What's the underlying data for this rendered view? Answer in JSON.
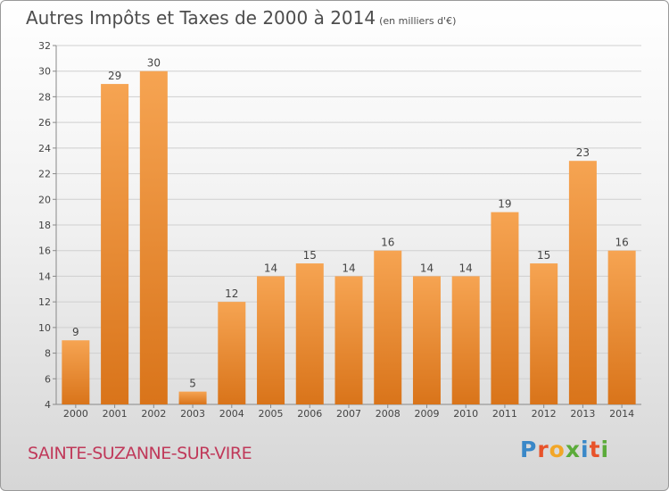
{
  "header": {
    "title": "Autres Impôts et Taxes de 2000 à 2014",
    "subtitle": "(en milliers d'€)"
  },
  "footer": {
    "city": "SAINTE-SUZANNE-SUR-VIRE",
    "logo": "Proxiti",
    "logo_colors": [
      "#3a88c8",
      "#e8532a",
      "#f2a627",
      "#5bab3a",
      "#3a88c8",
      "#e8532a",
      "#5bab3a"
    ]
  },
  "chart_data": {
    "type": "bar",
    "categories": [
      "2000",
      "2001",
      "2002",
      "2003",
      "2004",
      "2005",
      "2006",
      "2007",
      "2008",
      "2009",
      "2010",
      "2011",
      "2012",
      "2013",
      "2014"
    ],
    "values": [
      9,
      29,
      30,
      5,
      12,
      14,
      15,
      14,
      16,
      14,
      14,
      19,
      15,
      23,
      16
    ],
    "title": "Autres Impôts et Taxes de 2000 à 2014",
    "subtitle": "(en milliers d'€)",
    "ylim": [
      4,
      32
    ],
    "yticks": [
      4,
      6,
      8,
      10,
      12,
      14,
      16,
      18,
      20,
      22,
      24,
      26,
      28,
      30,
      32
    ],
    "grid": true,
    "bar_color": "#f0943c",
    "bar_color_dark": "#d9751c"
  }
}
